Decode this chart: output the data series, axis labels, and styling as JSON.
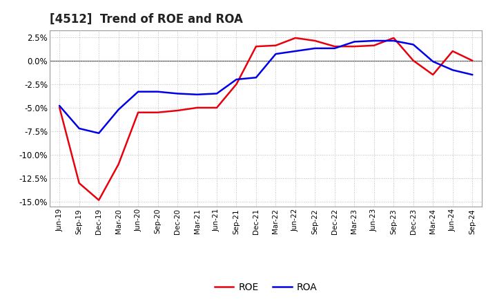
{
  "title": "[4512]  Trend of ROE and ROA",
  "labels": [
    "Jun-19",
    "Sep-19",
    "Dec-19",
    "Mar-20",
    "Jun-20",
    "Sep-20",
    "Dec-20",
    "Mar-21",
    "Jun-21",
    "Sep-21",
    "Dec-21",
    "Mar-22",
    "Jun-22",
    "Sep-22",
    "Dec-22",
    "Mar-23",
    "Jun-23",
    "Sep-23",
    "Dec-23",
    "Mar-24",
    "Jun-24",
    "Sep-24"
  ],
  "ROE": [
    -5.0,
    -13.0,
    -14.8,
    -11.0,
    -5.5,
    -5.5,
    -5.3,
    -5.0,
    -5.0,
    -2.5,
    1.5,
    1.6,
    2.4,
    2.1,
    1.5,
    1.5,
    1.6,
    2.4,
    0.0,
    -1.5,
    1.0,
    0.0
  ],
  "ROA": [
    -4.8,
    -7.2,
    -7.7,
    -5.2,
    -3.3,
    -3.3,
    -3.5,
    -3.6,
    -3.5,
    -2.0,
    -1.8,
    0.7,
    1.0,
    1.3,
    1.3,
    2.0,
    2.1,
    2.1,
    1.7,
    -0.1,
    -1.0,
    -1.5
  ],
  "roe_color": "#e8000d",
  "roa_color": "#0000e8",
  "background_color": "#ffffff",
  "grid_color": "#bbbbbb",
  "ylim": [
    -15.5,
    3.2
  ],
  "yticks": [
    -15.0,
    -12.5,
    -10.0,
    -7.5,
    -5.0,
    -2.5,
    0.0,
    2.5
  ],
  "line_width": 1.8,
  "title_fontsize": 12,
  "legend_fontsize": 10
}
